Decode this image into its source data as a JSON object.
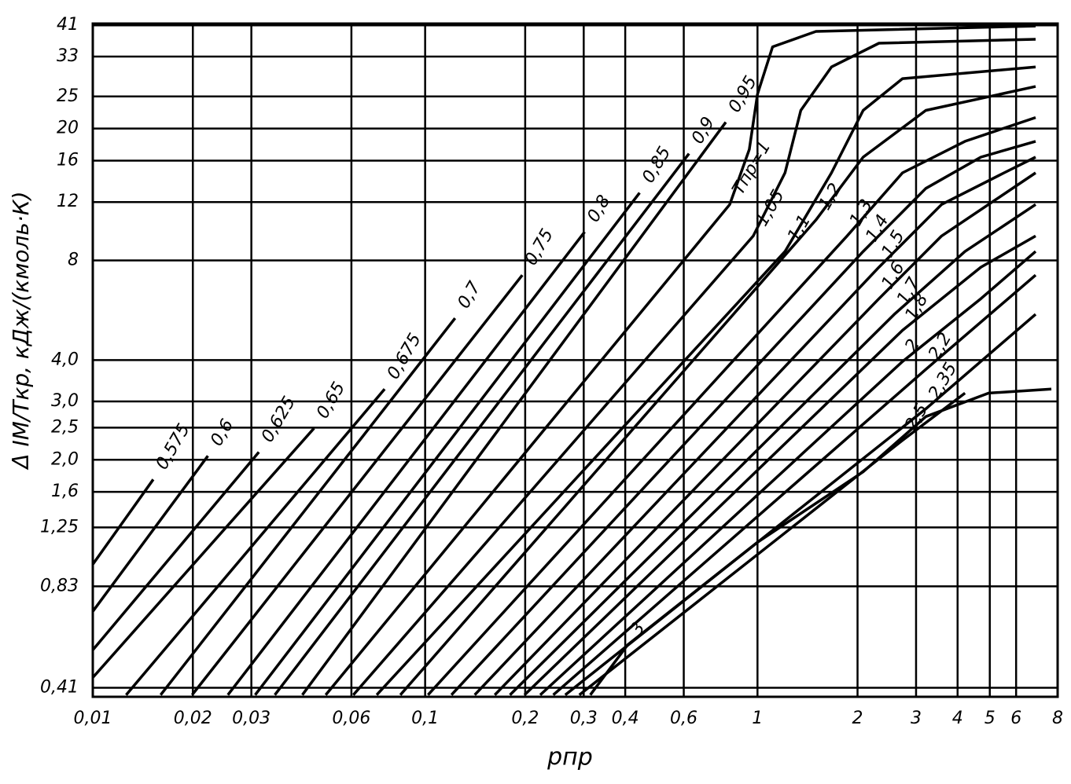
{
  "chart_data": {
    "type": "line",
    "x_label": "pпр",
    "y_label": "Δ IМ/Tкр, кДж/(кмоль·К)",
    "xscale": "log",
    "yscale": "log",
    "grid": true,
    "xlim": [
      0.01,
      8
    ],
    "ylim": [
      0.385,
      41.5
    ],
    "xticks": [
      {
        "value": 0.01,
        "label": "0,01"
      },
      {
        "value": 0.02,
        "label": "0,02"
      },
      {
        "value": 0.03,
        "label": "0,03"
      },
      {
        "value": 0.06,
        "label": "0,06"
      },
      {
        "value": 0.1,
        "label": "0,1"
      },
      {
        "value": 0.2,
        "label": "0,2"
      },
      {
        "value": 0.3,
        "label": "0,3"
      },
      {
        "value": 0.4,
        "label": "0,4"
      },
      {
        "value": 0.6,
        "label": "0,6"
      },
      1,
      2,
      3,
      4,
      5,
      6,
      8
    ],
    "yticks": [
      {
        "value": 0.41,
        "label": "0,41"
      },
      {
        "value": 0.83,
        "label": "0,83"
      },
      {
        "value": 1.25,
        "label": "1,25"
      },
      {
        "value": 1.6,
        "label": "1,6"
      },
      {
        "value": 2.0,
        "label": "2,0"
      },
      {
        "value": 2.5,
        "label": "2,5"
      },
      {
        "value": 3.0,
        "label": "3,0"
      },
      {
        "value": 4.0,
        "label": "4,0"
      },
      8,
      12,
      16,
      20,
      25,
      33,
      41
    ],
    "series": [
      {
        "name": "0,575",
        "color": "#000",
        "x": [
          0.01,
          0.0152
        ],
        "values": [
          0.967,
          1.745
        ]
      },
      {
        "name": "0,6",
        "color": "#000",
        "x": [
          0.01,
          0.0222
        ],
        "values": [
          0.697,
          2.055
        ]
      },
      {
        "name": "0,625",
        "color": "#000",
        "x": [
          0.01,
          0.0316
        ],
        "values": [
          0.533,
          2.11
        ]
      },
      {
        "name": "0,65",
        "color": "#000",
        "x": [
          0.01,
          0.0463
        ],
        "values": [
          0.44,
          2.49
        ]
      },
      {
        "name": "0,675",
        "color": "#000",
        "x": [
          0.0126,
          0.0755
        ],
        "values": [
          0.39,
          3.27
        ]
      },
      {
        "name": "0,7",
        "color": "#000",
        "x": [
          0.016,
          0.123
        ],
        "values": [
          0.39,
          5.35
        ]
      },
      {
        "name": "0,75",
        "color": "#000",
        "x": [
          0.0199,
          0.196
        ],
        "values": [
          0.39,
          7.22
        ]
      },
      {
        "name": "0,8",
        "color": "#000",
        "x": [
          0.0255,
          0.302
        ],
        "values": [
          0.39,
          9.75
        ]
      },
      {
        "name": "0,85",
        "color": "#000",
        "x": [
          0.0308,
          0.442
        ],
        "values": [
          0.39,
          12.8
        ]
      },
      {
        "name": "0,9",
        "color": "#000",
        "x": [
          0.0353,
          0.622
        ],
        "values": [
          0.39,
          16.8
        ]
      },
      {
        "name": "0,95",
        "color": "#000",
        "x": [
          0.0427,
          0.803
        ],
        "values": [
          0.39,
          20.9
        ]
      },
      {
        "name": "Tпр=1",
        "color": "#000",
        "x": [
          0.0502,
          0.825,
          0.945,
          1.0,
          1.11,
          1.5,
          6.87
        ],
        "values": [
          0.39,
          11.8,
          17.3,
          25.4,
          35.3,
          39.3,
          40.8
        ]
      },
      {
        "name": "1,05",
        "color": "#000",
        "x": [
          0.0608,
          0.971,
          1.21,
          1.35,
          1.67,
          2.32,
          6.87
        ],
        "values": [
          0.39,
          9.48,
          14.7,
          22.7,
          30.7,
          36.2,
          37.2
        ]
      },
      {
        "name": "1,1",
        "color": "#000",
        "x": [
          0.0715,
          1.21,
          1.67,
          2.08,
          2.73,
          6.87
        ],
        "values": [
          0.39,
          8.51,
          14.7,
          22.7,
          28.3,
          30.7
        ]
      },
      {
        "name": "1,2",
        "color": "#000",
        "x": [
          0.0842,
          1.5,
          2.08,
          3.21,
          6.87
        ],
        "values": [
          0.39,
          10.6,
          16.4,
          22.7,
          26.8
        ]
      },
      {
        "name": "1,3",
        "color": "#000",
        "x": [
          0.102,
          1.86,
          2.73,
          4.21,
          6.87
        ],
        "values": [
          0.39,
          9.48,
          14.7,
          18.3,
          21.6
        ]
      },
      {
        "name": "1,4",
        "color": "#000",
        "x": [
          0.12,
          2.08,
          3.21,
          4.7,
          6.87
        ],
        "values": [
          0.39,
          8.51,
          13.2,
          16.4,
          18.3
        ]
      },
      {
        "name": "1,5",
        "color": "#000",
        "x": [
          0.141,
          2.32,
          3.58,
          5.52,
          6.87
        ],
        "values": [
          0.39,
          7.63,
          11.8,
          14.7,
          16.4
        ]
      },
      {
        "name": "1,6",
        "color": "#000",
        "x": [
          0.162,
          2.32,
          3.58,
          6.87
        ],
        "values": [
          0.39,
          6.13,
          9.48,
          14.7
        ]
      },
      {
        "name": "1,7",
        "color": "#000",
        "x": [
          0.18,
          2.58,
          4.21,
          6.87
        ],
        "values": [
          0.39,
          5.5,
          8.51,
          11.8
        ]
      },
      {
        "name": "1,8",
        "color": "#000",
        "x": [
          0.199,
          2.73,
          4.7,
          6.87
        ],
        "values": [
          0.39,
          4.92,
          7.63,
          9.48
        ]
      },
      {
        "name": "2",
        "color": "#000",
        "x": [
          0.222,
          2.73,
          4.7,
          6.87
        ],
        "values": [
          0.39,
          3.96,
          6.13,
          8.51
        ]
      },
      {
        "name": "2,2",
        "color": "#000",
        "x": [
          0.243,
          3.21,
          6.87
        ],
        "values": [
          0.39,
          3.75,
          7.22
        ]
      },
      {
        "name": "2,35",
        "color": "#000",
        "x": [
          0.264,
          3.21,
          6.87
        ],
        "values": [
          0.39,
          2.85,
          5.5
        ]
      },
      {
        "name": "2,5",
        "color": "#000",
        "x": [
          0.291,
          2.73,
          4.21
        ],
        "values": [
          0.39,
          2.29,
          3.18
        ]
      },
      {
        "name": "3",
        "color": "#000",
        "x": [
          0.314,
          0.407,
          1.0,
          2.08,
          3.21,
          4.96,
          7.66
        ],
        "values": [
          0.39,
          0.553,
          1.127,
          1.84,
          2.7,
          3.18,
          3.27
        ]
      }
    ]
  }
}
